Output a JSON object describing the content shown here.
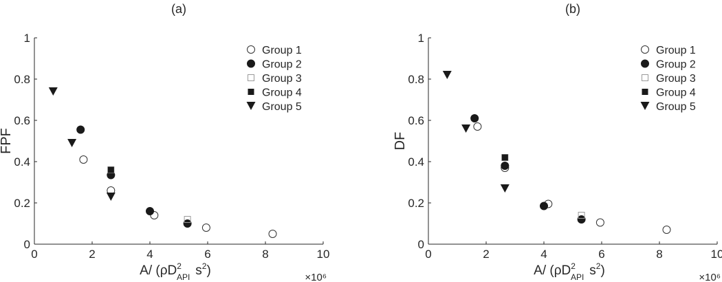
{
  "chart_data": [
    {
      "type": "scatter",
      "title": "(a)",
      "ylabel": "FPF",
      "xlabel": {
        "prefix": "A/ (ρD",
        "sup": "2",
        "sub": "API",
        "suffix": "s",
        "suffix_sup": "2",
        "close": ")"
      },
      "x_exponent": "×10⁶",
      "xlim": [
        0,
        10
      ],
      "ylim": [
        0,
        1
      ],
      "xticks": [
        "0",
        "2",
        "4",
        "6",
        "8",
        "10"
      ],
      "yticks": [
        "0",
        "0.2",
        "0.4",
        "0.6",
        "0.8",
        "1"
      ],
      "grid": false,
      "legend_position": "top-right",
      "series": [
        {
          "name": "Group 1",
          "marker": "circle-open",
          "color": "#333333",
          "x": [
            1.7,
            2.65,
            4.15,
            5.95,
            8.25
          ],
          "y": [
            0.41,
            0.26,
            0.14,
            0.08,
            0.05
          ]
        },
        {
          "name": "Group 2",
          "marker": "circle-filled",
          "color": "#1a1a1a",
          "x": [
            1.6,
            2.65,
            4.0,
            5.3
          ],
          "y": [
            0.555,
            0.335,
            0.16,
            0.1
          ]
        },
        {
          "name": "Group 3",
          "marker": "square-open",
          "color": "#999999",
          "x": [
            2.65,
            5.3
          ],
          "y": [
            0.36,
            0.12
          ]
        },
        {
          "name": "Group 4",
          "marker": "square-filled",
          "color": "#1a1a1a",
          "x": [
            2.65
          ],
          "y": [
            0.36
          ]
        },
        {
          "name": "Group 5",
          "marker": "triangle-down",
          "color": "#1a1a1a",
          "x": [
            0.65,
            1.3,
            2.65
          ],
          "y": [
            0.74,
            0.49,
            0.23
          ]
        }
      ]
    },
    {
      "type": "scatter",
      "title": "(b)",
      "ylabel": "DF",
      "xlabel": {
        "prefix": "A/ (ρD",
        "sup": "2",
        "sub": "API",
        "suffix": "s",
        "suffix_sup": "2",
        "close": ")"
      },
      "x_exponent": "×10⁶",
      "xlim": [
        0,
        10
      ],
      "ylim": [
        0,
        1
      ],
      "xticks": [
        "0",
        "2",
        "4",
        "6",
        "8",
        "10"
      ],
      "yticks": [
        "0",
        "0.2",
        "0.4",
        "0.6",
        "0.8",
        "1"
      ],
      "grid": false,
      "legend_position": "top-right",
      "series": [
        {
          "name": "Group 1",
          "marker": "circle-open",
          "color": "#333333",
          "x": [
            1.7,
            2.65,
            4.15,
            5.95,
            8.25
          ],
          "y": [
            0.57,
            0.37,
            0.195,
            0.105,
            0.07
          ]
        },
        {
          "name": "Group 2",
          "marker": "circle-filled",
          "color": "#1a1a1a",
          "x": [
            1.6,
            2.65,
            4.0,
            5.3
          ],
          "y": [
            0.61,
            0.38,
            0.185,
            0.12
          ]
        },
        {
          "name": "Group 3",
          "marker": "square-open",
          "color": "#999999",
          "x": [
            2.65,
            5.3
          ],
          "y": [
            0.42,
            0.14
          ]
        },
        {
          "name": "Group 4",
          "marker": "square-filled",
          "color": "#1a1a1a",
          "x": [
            2.65
          ],
          "y": [
            0.42
          ]
        },
        {
          "name": "Group 5",
          "marker": "triangle-down",
          "color": "#1a1a1a",
          "x": [
            0.65,
            1.3,
            2.65
          ],
          "y": [
            0.82,
            0.56,
            0.27
          ]
        }
      ]
    }
  ]
}
